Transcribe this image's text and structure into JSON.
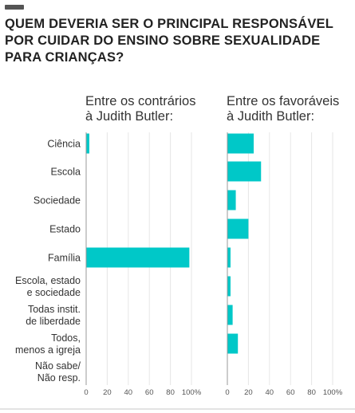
{
  "title": "QUEM DEVERIA SER O PRINCIPAL RESPONSÁVEL POR CUIDAR DO ENSINO SOBRE SEXUALIDADE PARA CRIANÇAS?",
  "colors": {
    "bar": "#00c8c8",
    "axis": "#999999",
    "grid": "#e6e6e6",
    "text": "#333333"
  },
  "chart_data": {
    "type": "bar",
    "orientation": "horizontal",
    "title": "QUEM DEVERIA SER O PRINCIPAL RESPONSÁVEL POR CUIDAR DO ENSINO SOBRE SEXUALIDADE PARA CRIANÇAS?",
    "categories": [
      [
        "Ciência"
      ],
      [
        "Escola"
      ],
      [
        "Sociedade"
      ],
      [
        "Estado"
      ],
      [
        "Família"
      ],
      [
        "Escola, estado",
        "e sociedade"
      ],
      [
        "Todas instit.",
        "de liberdade"
      ],
      [
        "Todos,",
        "menos a igreja"
      ],
      [
        "Não sabe/",
        "Não resp."
      ]
    ],
    "panels": [
      {
        "header": [
          "Entre os contrários",
          "à Judith Butler:"
        ],
        "values": [
          3,
          0,
          0,
          0,
          98,
          0,
          0,
          0,
          0
        ]
      },
      {
        "header": [
          "Entre os favoráveis",
          "à Judith Butler:"
        ],
        "values": [
          25,
          32,
          8,
          20,
          3,
          3,
          5,
          10,
          0
        ]
      }
    ],
    "xlim": [
      0,
      100
    ],
    "xticks": [
      "0",
      "20",
      "40",
      "60",
      "80",
      "100%"
    ],
    "grid": true,
    "legend": "none"
  }
}
